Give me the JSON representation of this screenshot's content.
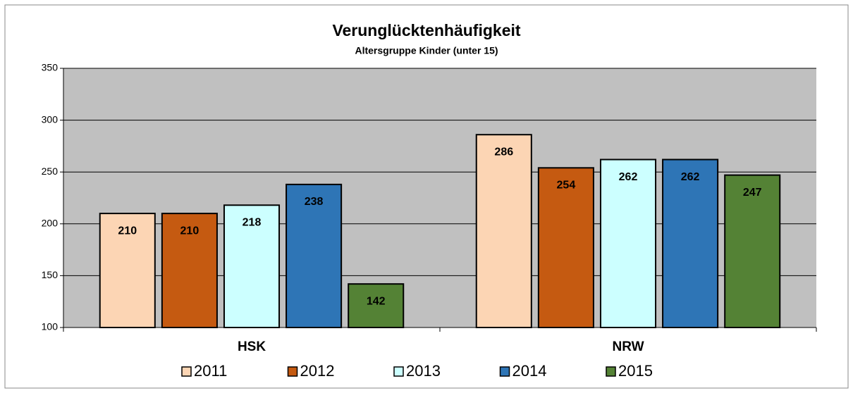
{
  "chart_data": {
    "type": "bar",
    "title": "Verunglücktenhäufigkeit",
    "subtitle": "Altersgruppe Kinder (unter 15)",
    "categories": [
      "HSK",
      "NRW"
    ],
    "series": [
      {
        "name": "2011",
        "color": "#FCD5B4",
        "values": [
          210,
          286
        ]
      },
      {
        "name": "2012",
        "color": "#C55A11",
        "values": [
          210,
          254
        ]
      },
      {
        "name": "2013",
        "color": "#CCFFFF",
        "values": [
          218,
          262
        ]
      },
      {
        "name": "2014",
        "color": "#2E75B6",
        "values": [
          238,
          262
        ]
      },
      {
        "name": "2015",
        "color": "#548235",
        "values": [
          142,
          247
        ]
      }
    ],
    "ylim": [
      100,
      350
    ],
    "yticks": [
      100,
      150,
      200,
      250,
      300,
      350
    ],
    "grid": true
  }
}
